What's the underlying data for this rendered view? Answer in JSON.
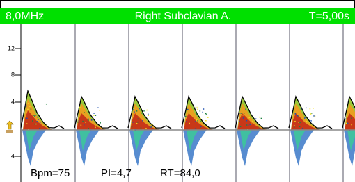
{
  "header": {
    "frequency": "8,0MHz",
    "vessel": "Right Subclavian A.",
    "time": "T=5,00s"
  },
  "scale": {
    "labels": [
      "12",
      "8",
      "4",
      "4"
    ]
  },
  "measurements": {
    "bpm": "Bpm=75",
    "pi": "PI=4,7",
    "rt": "RT=84,0"
  }
}
